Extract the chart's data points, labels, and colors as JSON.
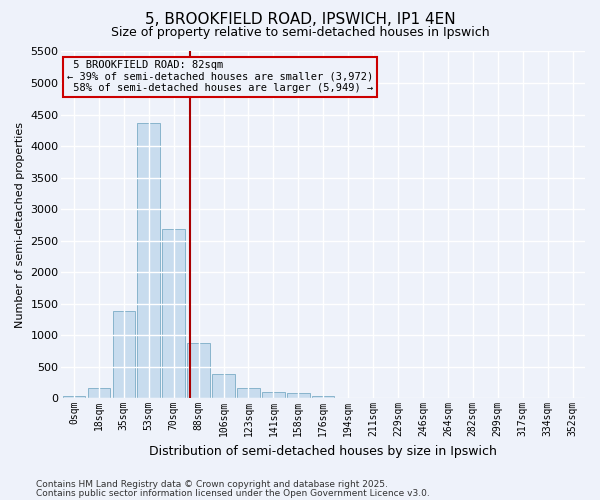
{
  "title1": "5, BROOKFIELD ROAD, IPSWICH, IP1 4EN",
  "title2": "Size of property relative to semi-detached houses in Ipswich",
  "xlabel": "Distribution of semi-detached houses by size in Ipswich",
  "ylabel": "Number of semi-detached properties",
  "bins": [
    "0sqm",
    "18sqm",
    "35sqm",
    "53sqm",
    "70sqm",
    "88sqm",
    "106sqm",
    "123sqm",
    "141sqm",
    "158sqm",
    "176sqm",
    "194sqm",
    "211sqm",
    "229sqm",
    "246sqm",
    "264sqm",
    "282sqm",
    "299sqm",
    "317sqm",
    "334sqm",
    "352sqm"
  ],
  "values": [
    30,
    160,
    1380,
    4360,
    2680,
    870,
    380,
    160,
    100,
    80,
    40,
    0,
    0,
    0,
    0,
    0,
    0,
    0,
    0,
    0,
    0
  ],
  "bar_color": "#c8dcee",
  "bar_edge_color": "#88b4cc",
  "property_line_x": 4.65,
  "property_size": "82sqm",
  "pct_smaller": 39,
  "pct_larger": 58,
  "count_smaller": "3,972",
  "count_larger": "5,949",
  "property_label": "5 BROOKFIELD ROAD",
  "vline_color": "#aa0000",
  "annotation_box_color": "#cc0000",
  "ylim": [
    0,
    5500
  ],
  "yticks": [
    0,
    500,
    1000,
    1500,
    2000,
    2500,
    3000,
    3500,
    4000,
    4500,
    5000,
    5500
  ],
  "background_color": "#eef2fa",
  "grid_color": "#ffffff",
  "footnote1": "Contains HM Land Registry data © Crown copyright and database right 2025.",
  "footnote2": "Contains public sector information licensed under the Open Government Licence v3.0."
}
